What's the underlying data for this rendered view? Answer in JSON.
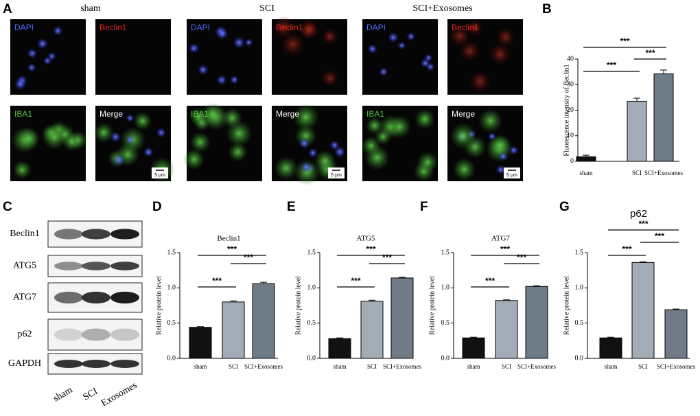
{
  "panel_letters": [
    "A",
    "B",
    "C",
    "D",
    "E",
    "F",
    "G"
  ],
  "micrographs": {
    "groups": [
      "sham",
      "SCI",
      "SCI+Exosomes"
    ],
    "channels": [
      "DAPI",
      "Beclin1",
      "IBA1",
      "Merge"
    ],
    "scale_bar": "5 μm"
  },
  "blot": {
    "rows": [
      "Beclin1",
      "ATG5",
      "ATG7",
      "p62",
      "GAPDH"
    ],
    "lanes": [
      "sham",
      "SCI",
      "Exosomes"
    ]
  },
  "chart_data": [
    {
      "type": "bar",
      "y_label": "Fluorescence intensity of Beclin1",
      "categories": [
        "sham",
        "SCI",
        "SCI+Exosomes"
      ],
      "values": [
        1.8,
        23.5,
        34.2
      ],
      "errors": [
        0.6,
        1.2,
        1.5
      ],
      "colors": [
        "#111111",
        "#a3adb8",
        "#6f7c87"
      ],
      "ylim": [
        0,
        40
      ],
      "yticks": [
        0,
        10,
        20,
        30,
        40
      ],
      "annotations": [
        "***",
        "***",
        "***"
      ]
    },
    {
      "type": "bar",
      "title": "Beclin1",
      "y_label": "Relative protein level",
      "categories": [
        "sham",
        "SCI",
        "SCI+Exosomes"
      ],
      "values": [
        0.44,
        0.8,
        1.06
      ],
      "errors": [
        0.01,
        0.015,
        0.02
      ],
      "colors": [
        "#111111",
        "#a3adb8",
        "#6f7c87"
      ],
      "ylim": [
        0,
        1.5
      ],
      "yticks": [
        {
          "value": 0,
          "label": "0.0"
        },
        0.5,
        {
          "value": 1,
          "label": "1.0"
        },
        1.5
      ],
      "annotations": [
        "***",
        "***",
        "***"
      ]
    },
    {
      "type": "bar",
      "title": "ATG5",
      "y_label": "Relative protein level",
      "categories": [
        "sham",
        "SCI",
        "SCI+Exosomes"
      ],
      "values": [
        0.28,
        0.81,
        1.14
      ],
      "errors": [
        0.01,
        0.015,
        0.01
      ],
      "colors": [
        "#111111",
        "#a3adb8",
        "#6f7c87"
      ],
      "ylim": [
        0,
        1.5
      ],
      "yticks": [
        {
          "value": 0,
          "label": "0.0"
        },
        0.5,
        {
          "value": 1,
          "label": "1.0"
        },
        1.5
      ],
      "annotations": [
        "***",
        "***",
        "***"
      ]
    },
    {
      "type": "bar",
      "title": "ATG7",
      "y_label": "Relative protein level",
      "categories": [
        "sham",
        "SCI",
        "SCI+Exosomes"
      ],
      "values": [
        0.29,
        0.82,
        1.02
      ],
      "errors": [
        0.01,
        0.01,
        0.01
      ],
      "colors": [
        "#111111",
        "#a3adb8",
        "#6f7c87"
      ],
      "ylim": [
        0,
        1.5
      ],
      "yticks": [
        {
          "value": 0,
          "label": "0.0"
        },
        0.5,
        {
          "value": 1,
          "label": "1.0"
        },
        1.5
      ],
      "annotations": [
        "***",
        "***",
        "***"
      ]
    },
    {
      "type": "bar",
      "title": "p62",
      "y_label": "Relative protein level",
      "categories": [
        "sham",
        "SCI",
        "SCI+Exosomes"
      ],
      "values": [
        0.29,
        1.36,
        0.69
      ],
      "errors": [
        0.01,
        0.01,
        0.01
      ],
      "colors": [
        "#111111",
        "#a3adb8",
        "#6f7c87"
      ],
      "ylim": [
        0,
        1.5
      ],
      "yticks": [
        {
          "value": 0,
          "label": "0.0"
        },
        0.5,
        {
          "value": 1,
          "label": "1.0"
        },
        1.5
      ],
      "annotations": [
        "***",
        "***",
        "***"
      ]
    }
  ]
}
